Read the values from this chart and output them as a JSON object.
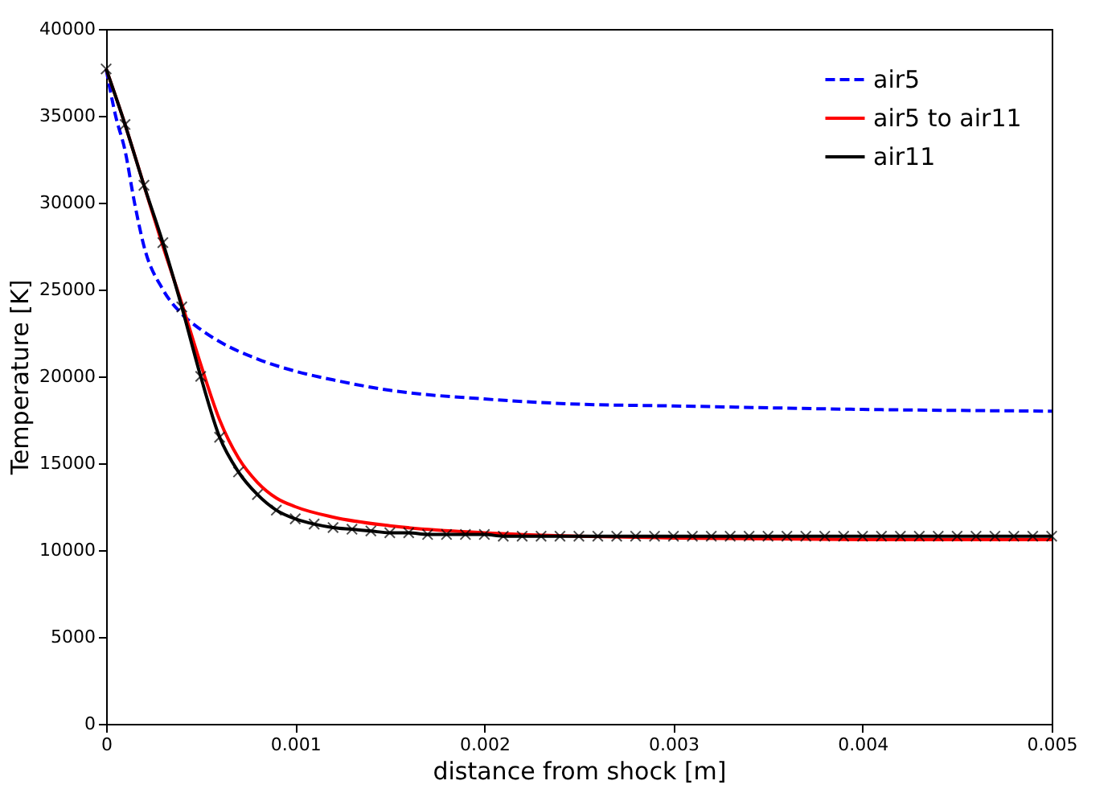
{
  "chart_data": {
    "type": "line",
    "xlabel": "distance from shock [m]",
    "ylabel": "Temperature [K]",
    "xlim": [
      0,
      0.005
    ],
    "xticks": [
      0,
      0.001,
      0.002,
      0.003,
      0.004,
      0.005
    ],
    "ylim": [
      0,
      40000
    ],
    "yticks": [
      0,
      5000,
      10000,
      15000,
      20000,
      25000,
      30000,
      35000,
      40000
    ],
    "grid": false,
    "legend": "top right",
    "series": [
      {
        "name": "air5",
        "color": "#0000ff",
        "line_style": "dashed",
        "marker": "none",
        "x": [
          0,
          5e-05,
          0.0001,
          0.00015,
          0.0002,
          0.0003,
          0.0004,
          0.0005,
          0.0006,
          0.0008,
          0.001,
          0.0012,
          0.0015,
          0.002,
          0.0025,
          0.003,
          0.004,
          0.005
        ],
        "values": [
          37700,
          35000,
          33000,
          30000,
          27500,
          25000,
          23600,
          22700,
          22000,
          21000,
          20300,
          19800,
          19200,
          18700,
          18400,
          18300,
          18100,
          18000
        ]
      },
      {
        "name": "air5 to air11",
        "color": "#ff0000",
        "line_style": "solid",
        "marker": "none",
        "x": [
          0,
          0.0001,
          0.0002,
          0.0003,
          0.0004,
          0.0005,
          0.0006,
          0.0007,
          0.0008,
          0.0009,
          0.001,
          0.0012,
          0.0015,
          0.002,
          0.0025,
          0.003,
          0.004,
          0.005
        ],
        "values": [
          37700,
          34500,
          31000,
          27500,
          24200,
          20700,
          17500,
          15300,
          13900,
          13000,
          12500,
          11900,
          11400,
          11000,
          10800,
          10700,
          10600,
          10600
        ]
      },
      {
        "name": "air11",
        "color": "#000000",
        "line_style": "solid",
        "marker": "cross",
        "x": [
          0,
          0.0001,
          0.0002,
          0.0003,
          0.0004,
          0.0005,
          0.0006,
          0.0007,
          0.0008,
          0.0009,
          0.001,
          0.0011,
          0.0012,
          0.0013,
          0.0014,
          0.0015,
          0.0016,
          0.0017,
          0.0018,
          0.0019,
          0.002,
          0.0021,
          0.0022,
          0.0023,
          0.0024,
          0.0025,
          0.0026,
          0.0027,
          0.0028,
          0.0029,
          0.003,
          0.0031,
          0.0032,
          0.0033,
          0.0034,
          0.0035,
          0.0036,
          0.0037,
          0.0038,
          0.0039,
          0.004,
          0.0041,
          0.0042,
          0.0043,
          0.0044,
          0.0045,
          0.0046,
          0.0047,
          0.0048,
          0.0049,
          0.005
        ],
        "values": [
          37700,
          34500,
          31000,
          27700,
          24000,
          20000,
          16500,
          14500,
          13200,
          12300,
          11800,
          11500,
          11300,
          11200,
          11100,
          11000,
          11000,
          10900,
          10900,
          10900,
          10900,
          10800,
          10800,
          10800,
          10800,
          10800,
          10800,
          10800,
          10800,
          10800,
          10800,
          10800,
          10800,
          10800,
          10800,
          10800,
          10800,
          10800,
          10800,
          10800,
          10800,
          10800,
          10800,
          10800,
          10800,
          10800,
          10800,
          10800,
          10800,
          10800,
          10800
        ]
      }
    ]
  }
}
